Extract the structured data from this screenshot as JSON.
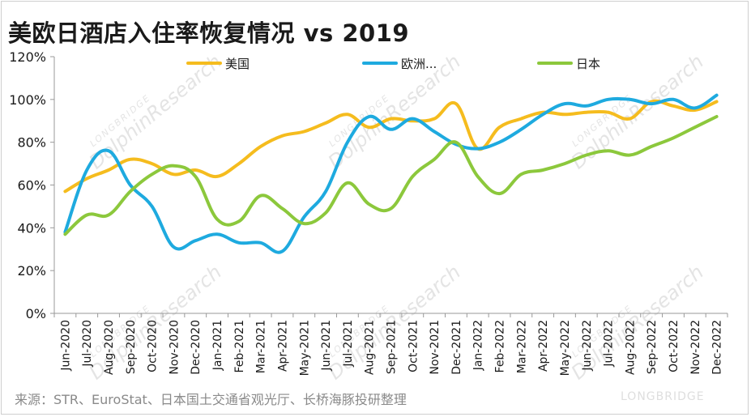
{
  "title": "美欧日酒店入住率恢复情况  vs 2019",
  "source": "来源：STR、EuroStat、日本国土交通省观光厅、长桥海豚投研整理",
  "watermark": {
    "brand": "LONGBRIDGE",
    "research": "DolphinResearch"
  },
  "chart_data": {
    "type": "line",
    "title": "美欧日酒店入住率恢复情况  vs 2019",
    "xlabel": "",
    "ylabel": "",
    "ylim": [
      0,
      120
    ],
    "yticks": [
      0,
      20,
      40,
      60,
      80,
      100,
      120
    ],
    "ytick_labels": [
      "0%",
      "20%",
      "40%",
      "60%",
      "80%",
      "100%",
      "120%"
    ],
    "grid": false,
    "legend_position": "top",
    "categories": [
      "Jun-2020",
      "Jul-2020",
      "Aug-2020",
      "Sep-2020",
      "Oct-2020",
      "Nov-2020",
      "Dec-2020",
      "Jan-2021",
      "Feb-2021",
      "Mar-2021",
      "Apr-2021",
      "May-2021",
      "Jun-2021",
      "Jul-2021",
      "Aug-2021",
      "Sep-2021",
      "Oct-2021",
      "Nov-2021",
      "Dec-2021",
      "Jan-2022",
      "Feb-2022",
      "Mar-2022",
      "Apr-2022",
      "May-2022",
      "Jun-2022",
      "Jul-2022",
      "Aug-2022",
      "Sep-2022",
      "Oct-2022",
      "Nov-2022",
      "Dec-2022"
    ],
    "series": [
      {
        "name": "美国",
        "color": "#F5BC1E",
        "values": [
          57,
          63,
          67,
          72,
          70,
          65,
          67,
          64,
          70,
          78,
          83,
          85,
          89,
          93,
          87,
          91,
          90,
          91,
          98,
          77,
          87,
          91,
          94,
          93,
          94,
          94,
          91,
          99,
          97,
          95,
          99
        ]
      },
      {
        "name": "欧洲...",
        "color": "#1EAADF",
        "values": [
          38,
          67,
          76,
          60,
          50,
          31,
          34,
          37,
          33,
          33,
          29,
          45,
          57,
          80,
          92,
          86,
          91,
          85,
          79,
          77,
          80,
          86,
          93,
          98,
          97,
          100,
          100,
          98,
          100,
          96,
          102
        ]
      },
      {
        "name": "日本",
        "color": "#8CC83C",
        "values": [
          37,
          46,
          46,
          57,
          65,
          69,
          64,
          44,
          43,
          55,
          49,
          42,
          47,
          61,
          51,
          49,
          64,
          72,
          80,
          64,
          56,
          65,
          67,
          70,
          74,
          76,
          74,
          78,
          82,
          87,
          92
        ]
      }
    ]
  }
}
